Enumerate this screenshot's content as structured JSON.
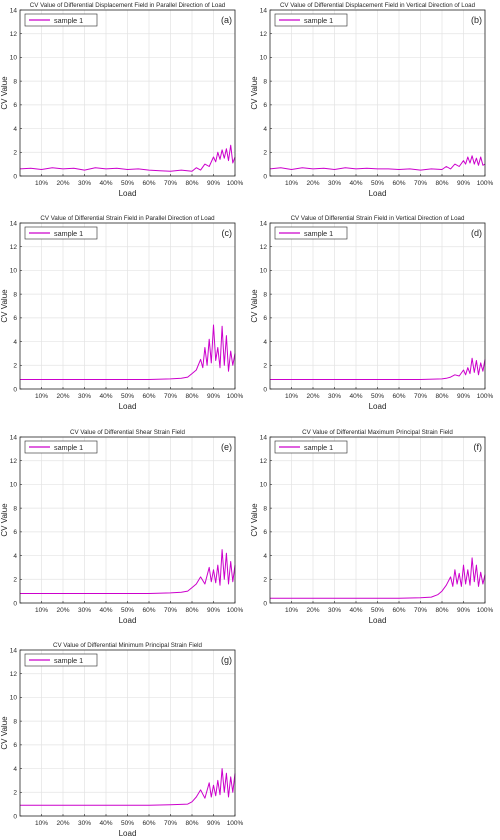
{
  "figure": {
    "series_color": "#CC00CC"
  },
  "chart_data": [
    {
      "type": "line",
      "panel": "(a)",
      "title": "CV Value of Differential Displacement Field in Parallel Direction of Load",
      "xlabel": "Load",
      "ylabel": "CV Value",
      "xlim": [
        0,
        100
      ],
      "ylim": [
        0,
        14
      ],
      "xticks": [
        10,
        20,
        30,
        40,
        50,
        60,
        70,
        80,
        90,
        100
      ],
      "xticklabels": [
        "10%",
        "20%",
        "30%",
        "40%",
        "50%",
        "60%",
        "70%",
        "80%",
        "90%",
        "100%"
      ],
      "yticks": [
        0,
        2,
        4,
        6,
        8,
        10,
        12,
        14
      ],
      "grid": true,
      "legend_position": "top-left",
      "series": [
        {
          "name": "sample 1",
          "color": "#CC00CC",
          "x": [
            0,
            5,
            10,
            15,
            20,
            25,
            30,
            35,
            40,
            45,
            50,
            55,
            60,
            65,
            70,
            75,
            80,
            82,
            84,
            86,
            88,
            90,
            91,
            92,
            93,
            94,
            95,
            96,
            97,
            98,
            99,
            100
          ],
          "y": [
            0.6,
            0.65,
            0.55,
            0.7,
            0.6,
            0.65,
            0.5,
            0.7,
            0.6,
            0.65,
            0.55,
            0.6,
            0.5,
            0.45,
            0.4,
            0.5,
            0.4,
            0.7,
            0.5,
            1.0,
            0.8,
            1.6,
            1.2,
            2.0,
            1.4,
            2.2,
            1.5,
            2.3,
            1.3,
            2.6,
            1.1,
            1.6
          ]
        }
      ]
    },
    {
      "type": "line",
      "panel": "(b)",
      "title": "CV Value of Differential Displacement Field in Vertical Direction of Load",
      "xlabel": "Load",
      "ylabel": "CV Value",
      "xlim": [
        0,
        100
      ],
      "ylim": [
        0,
        14
      ],
      "xticks": [
        10,
        20,
        30,
        40,
        50,
        60,
        70,
        80,
        90,
        100
      ],
      "xticklabels": [
        "10%",
        "20%",
        "30%",
        "40%",
        "50%",
        "60%",
        "70%",
        "80%",
        "90%",
        "100%"
      ],
      "yticks": [
        0,
        2,
        4,
        6,
        8,
        10,
        12,
        14
      ],
      "grid": true,
      "legend_position": "top-left",
      "series": [
        {
          "name": "sample 1",
          "color": "#CC00CC",
          "x": [
            0,
            5,
            10,
            15,
            20,
            25,
            30,
            35,
            40,
            45,
            50,
            55,
            60,
            65,
            70,
            75,
            80,
            82,
            84,
            86,
            88,
            90,
            91,
            92,
            93,
            94,
            95,
            96,
            97,
            98,
            99,
            100
          ],
          "y": [
            0.6,
            0.7,
            0.55,
            0.7,
            0.6,
            0.65,
            0.55,
            0.7,
            0.6,
            0.65,
            0.6,
            0.6,
            0.55,
            0.6,
            0.5,
            0.6,
            0.55,
            0.8,
            0.6,
            1.0,
            0.8,
            1.3,
            1.0,
            1.6,
            1.1,
            1.7,
            1.0,
            1.5,
            0.9,
            1.6,
            0.9,
            1.0
          ]
        }
      ]
    },
    {
      "type": "line",
      "panel": "(c)",
      "title": "CV Value of Differential Strain Field in Parallel Direction of Load",
      "xlabel": "Load",
      "ylabel": "CV Value",
      "xlim": [
        0,
        100
      ],
      "ylim": [
        0,
        14
      ],
      "xticks": [
        10,
        20,
        30,
        40,
        50,
        60,
        70,
        80,
        90,
        100
      ],
      "xticklabels": [
        "10%",
        "20%",
        "30%",
        "40%",
        "50%",
        "60%",
        "70%",
        "80%",
        "90%",
        "100%"
      ],
      "yticks": [
        0,
        2,
        4,
        6,
        8,
        10,
        12,
        14
      ],
      "grid": true,
      "legend_position": "top-left",
      "series": [
        {
          "name": "sample 1",
          "color": "#CC00CC",
          "x": [
            0,
            10,
            20,
            30,
            40,
            50,
            60,
            70,
            75,
            78,
            80,
            82,
            84,
            85,
            86,
            87,
            88,
            89,
            90,
            91,
            92,
            93,
            94,
            95,
            96,
            97,
            98,
            99,
            100
          ],
          "y": [
            0.8,
            0.8,
            0.8,
            0.8,
            0.8,
            0.8,
            0.8,
            0.85,
            0.9,
            1.0,
            1.3,
            1.6,
            2.5,
            1.8,
            3.5,
            2.0,
            4.2,
            2.2,
            5.4,
            2.4,
            3.5,
            1.8,
            5.3,
            2.0,
            4.5,
            1.5,
            3.2,
            2.0,
            3.0
          ]
        }
      ]
    },
    {
      "type": "line",
      "panel": "(d)",
      "title": "CV Value of Differential Strain Field in Vertical Direction of Load",
      "xlabel": "Load",
      "ylabel": "CV Value",
      "xlim": [
        0,
        100
      ],
      "ylim": [
        0,
        14
      ],
      "xticks": [
        10,
        20,
        30,
        40,
        50,
        60,
        70,
        80,
        90,
        100
      ],
      "xticklabels": [
        "10%",
        "20%",
        "30%",
        "40%",
        "50%",
        "60%",
        "70%",
        "80%",
        "90%",
        "100%"
      ],
      "yticks": [
        0,
        2,
        4,
        6,
        8,
        10,
        12,
        14
      ],
      "grid": true,
      "legend_position": "top-left",
      "series": [
        {
          "name": "sample 1",
          "color": "#CC00CC",
          "x": [
            0,
            10,
            20,
            30,
            40,
            50,
            60,
            70,
            80,
            82,
            84,
            86,
            88,
            90,
            91,
            92,
            93,
            94,
            95,
            96,
            97,
            98,
            99,
            100
          ],
          "y": [
            0.8,
            0.8,
            0.8,
            0.8,
            0.8,
            0.8,
            0.8,
            0.8,
            0.85,
            0.9,
            1.0,
            1.2,
            1.1,
            1.6,
            1.2,
            1.8,
            1.3,
            2.6,
            1.4,
            2.4,
            1.2,
            2.2,
            1.5,
            2.5
          ]
        }
      ]
    },
    {
      "type": "line",
      "panel": "(e)",
      "title": "CV Value of Differential Shear Strain Field",
      "xlabel": "Load",
      "ylabel": "CV Value",
      "xlim": [
        0,
        100
      ],
      "ylim": [
        0,
        14
      ],
      "xticks": [
        10,
        20,
        30,
        40,
        50,
        60,
        70,
        80,
        90,
        100
      ],
      "xticklabels": [
        "10%",
        "20%",
        "30%",
        "40%",
        "50%",
        "60%",
        "70%",
        "80%",
        "90%",
        "100%"
      ],
      "yticks": [
        0,
        2,
        4,
        6,
        8,
        10,
        12,
        14
      ],
      "grid": true,
      "legend_position": "top-left",
      "series": [
        {
          "name": "sample 1",
          "color": "#CC00CC",
          "x": [
            0,
            10,
            20,
            30,
            40,
            50,
            60,
            70,
            75,
            78,
            80,
            82,
            84,
            86,
            88,
            89,
            90,
            91,
            92,
            93,
            94,
            95,
            96,
            97,
            98,
            99,
            100
          ],
          "y": [
            0.8,
            0.8,
            0.8,
            0.8,
            0.8,
            0.8,
            0.8,
            0.85,
            0.9,
            1.0,
            1.3,
            1.6,
            2.2,
            1.6,
            3.0,
            1.8,
            2.8,
            1.7,
            3.2,
            1.5,
            4.5,
            2.0,
            4.2,
            1.6,
            3.5,
            1.8,
            3.2
          ]
        }
      ]
    },
    {
      "type": "line",
      "panel": "(f)",
      "title": "CV Value of Differential Maximum Principal Strain Field",
      "xlabel": "Load",
      "ylabel": "CV Value",
      "xlim": [
        0,
        100
      ],
      "ylim": [
        0,
        14
      ],
      "xticks": [
        10,
        20,
        30,
        40,
        50,
        60,
        70,
        80,
        90,
        100
      ],
      "xticklabels": [
        "10%",
        "20%",
        "30%",
        "40%",
        "50%",
        "60%",
        "70%",
        "80%",
        "90%",
        "100%"
      ],
      "yticks": [
        0,
        2,
        4,
        6,
        8,
        10,
        12,
        14
      ],
      "grid": true,
      "legend_position": "top-left",
      "series": [
        {
          "name": "sample 1",
          "color": "#CC00CC",
          "x": [
            0,
            10,
            20,
            30,
            40,
            50,
            60,
            70,
            75,
            78,
            80,
            82,
            84,
            85,
            86,
            87,
            88,
            89,
            90,
            91,
            92,
            93,
            94,
            95,
            96,
            97,
            98,
            99,
            100
          ],
          "y": [
            0.4,
            0.4,
            0.4,
            0.4,
            0.4,
            0.4,
            0.4,
            0.45,
            0.5,
            0.7,
            1.0,
            1.5,
            2.2,
            1.4,
            2.8,
            1.6,
            2.5,
            1.4,
            3.2,
            1.6,
            2.8,
            1.5,
            3.8,
            1.8,
            3.2,
            1.4,
            2.6,
            1.6,
            2.4
          ]
        }
      ]
    },
    {
      "type": "line",
      "panel": "(g)",
      "title": "CV Value of Differential Minimum Principal Strain Field",
      "xlabel": "Load",
      "ylabel": "CV Value",
      "xlim": [
        0,
        100
      ],
      "ylim": [
        0,
        14
      ],
      "xticks": [
        10,
        20,
        30,
        40,
        50,
        60,
        70,
        80,
        90,
        100
      ],
      "xticklabels": [
        "10%",
        "20%",
        "30%",
        "40%",
        "50%",
        "60%",
        "70%",
        "80%",
        "90%",
        "100%"
      ],
      "yticks": [
        0,
        2,
        4,
        6,
        8,
        10,
        12,
        14
      ],
      "grid": true,
      "legend_position": "top-left",
      "series": [
        {
          "name": "sample 1",
          "color": "#CC00CC",
          "x": [
            0,
            10,
            20,
            30,
            40,
            50,
            60,
            70,
            78,
            80,
            82,
            84,
            86,
            88,
            89,
            90,
            91,
            92,
            93,
            94,
            95,
            96,
            97,
            98,
            99,
            100
          ],
          "y": [
            0.9,
            0.9,
            0.9,
            0.9,
            0.9,
            0.9,
            0.9,
            0.95,
            1.0,
            1.2,
            1.6,
            2.2,
            1.5,
            2.8,
            1.6,
            2.6,
            1.7,
            3.0,
            1.8,
            4.0,
            2.0,
            3.6,
            1.6,
            3.3,
            2.0,
            3.6
          ]
        }
      ]
    }
  ]
}
